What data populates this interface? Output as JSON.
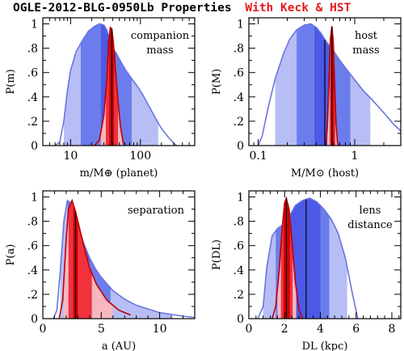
{
  "header": {
    "title_main": "OGLE-2012-BLG-0950Lb Properties",
    "title_highlight": "With Keck & HST",
    "highlight_color": "#e41a1c"
  },
  "colors": {
    "wide_light": "#b7bef5",
    "wide_mid": "#6b7cec",
    "wide_core": "#4b59e6",
    "wide_line": "#6b74e0",
    "narrow_light": "#f7b7c0",
    "narrow_mid": "#f2313c",
    "narrow_core": "#d50000",
    "narrow_line": "#c00000",
    "median_line": "#000000"
  },
  "chart_data": [
    {
      "id": "companion-mass",
      "type": "area",
      "annotation": [
        "companion",
        "mass"
      ],
      "xlabel": "m/M⊕ (planet)",
      "ylabel": "P(m)",
      "xscale": "log",
      "xlim": [
        4,
        600
      ],
      "ylim": [
        0,
        1.05
      ],
      "xticks": [
        10,
        100
      ],
      "xtick_labels": [
        "10",
        "100"
      ],
      "yticks": [
        0,
        0.2,
        0.4,
        0.6,
        0.8,
        1
      ],
      "ytick_labels": [
        "0",
        ".2",
        ".4",
        ".6",
        ".8",
        "1"
      ],
      "series": [
        {
          "role": "wide",
          "x": [
            6,
            7,
            8,
            9,
            10,
            12,
            15,
            18,
            22,
            26,
            30,
            33,
            36,
            40,
            45,
            50,
            60,
            75,
            90,
            110,
            140,
            170,
            200,
            250,
            300,
            330
          ],
          "y": [
            0,
            0.03,
            0.2,
            0.45,
            0.62,
            0.77,
            0.87,
            0.94,
            0.98,
            1.0,
            0.99,
            0.95,
            0.88,
            0.8,
            0.76,
            0.71,
            0.63,
            0.55,
            0.49,
            0.41,
            0.3,
            0.21,
            0.14,
            0.07,
            0.02,
            0
          ],
          "bands": [
            [
              8,
              14,
              1
            ],
            [
              14,
              27,
              2
            ],
            [
              27,
              45,
              3
            ],
            [
              45,
              75,
              2
            ],
            [
              75,
              180,
              1
            ]
          ],
          "median": 36
        },
        {
          "role": "narrow",
          "x": [
            22,
            26,
            30,
            33,
            35,
            37,
            39,
            41,
            44,
            48,
            52,
            56,
            60
          ],
          "y": [
            0,
            0.05,
            0.25,
            0.55,
            0.85,
            0.97,
            0.96,
            0.85,
            0.62,
            0.35,
            0.15,
            0.04,
            0
          ],
          "bands": [
            [
              27,
              32,
              1
            ],
            [
              32,
              36,
              2
            ],
            [
              36,
              42,
              3
            ],
            [
              42,
              48,
              2
            ],
            [
              48,
              55,
              1
            ]
          ],
          "median": 39
        }
      ]
    },
    {
      "id": "host-mass",
      "type": "area",
      "annotation": [
        "host",
        "mass"
      ],
      "xlabel": "M/M⊙ (host)",
      "ylabel": "P(M)",
      "xscale": "log",
      "xlim": [
        0.08,
        3
      ],
      "ylim": [
        0,
        1.05
      ],
      "xticks": [
        0.1,
        1
      ],
      "xtick_labels": [
        "0.1",
        "1"
      ],
      "yticks": [
        0,
        0.2,
        0.4,
        0.6,
        0.8,
        1
      ],
      "ytick_labels": [
        "0",
        ".2",
        ".4",
        ".6",
        ".8",
        "1"
      ],
      "series": [
        {
          "role": "wide",
          "x": [
            0.1,
            0.11,
            0.13,
            0.15,
            0.18,
            0.21,
            0.25,
            0.3,
            0.35,
            0.4,
            0.45,
            0.5,
            0.6,
            0.7,
            0.8,
            1,
            1.2,
            1.5,
            2,
            2.5,
            3
          ],
          "y": [
            0,
            0.08,
            0.35,
            0.55,
            0.74,
            0.87,
            0.95,
            0.99,
            1.0,
            0.97,
            0.92,
            0.86,
            0.78,
            0.7,
            0.64,
            0.54,
            0.46,
            0.38,
            0.27,
            0.18,
            0.12
          ],
          "bands": [
            [
              0.15,
              0.25,
              1
            ],
            [
              0.25,
              0.38,
              2
            ],
            [
              0.38,
              0.6,
              3
            ],
            [
              0.6,
              0.9,
              2
            ],
            [
              0.9,
              1.45,
              1
            ]
          ],
          "median": 0.49
        },
        {
          "role": "narrow",
          "x": [
            0.5,
            0.52,
            0.54,
            0.56,
            0.58,
            0.6,
            0.62,
            0.64,
            0.66,
            0.68
          ],
          "y": [
            0,
            0.15,
            0.5,
            0.88,
            0.98,
            0.85,
            0.5,
            0.18,
            0.04,
            0
          ],
          "bands": [
            [
              0.52,
              0.55,
              1
            ],
            [
              0.55,
              0.57,
              2
            ],
            [
              0.57,
              0.61,
              3
            ],
            [
              0.61,
              0.63,
              2
            ],
            [
              0.63,
              0.65,
              1
            ]
          ],
          "median": 0.58
        }
      ]
    },
    {
      "id": "separation",
      "type": "area",
      "annotation": [
        "separation"
      ],
      "xlabel": "a (AU)",
      "ylabel": "P(a)",
      "xscale": "linear",
      "xlim": [
        0,
        13
      ],
      "ylim": [
        0,
        1.05
      ],
      "xticks": [
        0,
        5,
        10
      ],
      "xtick_labels": [
        "0",
        "5",
        "10"
      ],
      "yticks": [
        0,
        0.2,
        0.4,
        0.6,
        0.8,
        1
      ],
      "ytick_labels": [
        "0",
        ".2",
        ".4",
        ".6",
        ".8",
        "1"
      ],
      "series": [
        {
          "role": "wide",
          "x": [
            0.9,
            1.2,
            1.5,
            1.8,
            2.1,
            2.4,
            2.7,
            3.0,
            3.5,
            4.0,
            4.5,
            5.0,
            6.0,
            7.0,
            8.0,
            9.0,
            10.0,
            11.0,
            12.0,
            13.0
          ],
          "y": [
            0,
            0.07,
            0.4,
            0.8,
            0.97,
            0.95,
            0.86,
            0.76,
            0.62,
            0.5,
            0.41,
            0.34,
            0.23,
            0.16,
            0.11,
            0.08,
            0.05,
            0.035,
            0.02,
            0.01
          ],
          "bands": [
            [
              1.5,
              2.1,
              1
            ],
            [
              2.1,
              2.8,
              2
            ],
            [
              2.8,
              4.0,
              3
            ],
            [
              4.0,
              5.8,
              2
            ],
            [
              5.8,
              11.0,
              1
            ]
          ],
          "median": 2.9
        },
        {
          "role": "narrow",
          "x": [
            1.4,
            1.7,
            2.0,
            2.2,
            2.5,
            2.8,
            3.2,
            3.6,
            4.0,
            4.6,
            5.5,
            6.5,
            7.5
          ],
          "y": [
            0,
            0.15,
            0.65,
            0.9,
            0.97,
            0.88,
            0.72,
            0.56,
            0.42,
            0.28,
            0.15,
            0.07,
            0.03
          ],
          "bands": [
            [
              1.8,
              2.2,
              1
            ],
            [
              2.2,
              2.6,
              2
            ],
            [
              2.6,
              3.0,
              3
            ],
            [
              3.0,
              4.2,
              2
            ],
            [
              4.2,
              6.0,
              1
            ]
          ],
          "median": 2.8
        }
      ]
    },
    {
      "id": "lens-distance",
      "type": "area",
      "annotation": [
        "lens",
        "distance"
      ],
      "xlabel": "DL (kpc)",
      "ylabel": "P(DL)",
      "xscale": "linear",
      "xlim": [
        0,
        8.5
      ],
      "ylim": [
        0,
        1.05
      ],
      "xticks": [
        0,
        2,
        4,
        6,
        8
      ],
      "xtick_labels": [
        "0",
        "2",
        "4",
        "6",
        "8"
      ],
      "yticks": [
        0,
        0.2,
        0.4,
        0.6,
        0.8,
        1
      ],
      "ytick_labels": [
        "0",
        ".2",
        ".4",
        ".6",
        ".8",
        "1"
      ],
      "series": [
        {
          "role": "wide",
          "x": [
            0.5,
            0.8,
            1.0,
            1.3,
            1.6,
            2.0,
            2.3,
            2.6,
            3.0,
            3.4,
            3.8,
            4.2,
            4.6,
            5.0,
            5.4,
            5.8,
            6.1
          ],
          "y": [
            0,
            0.1,
            0.42,
            0.68,
            0.74,
            0.78,
            0.85,
            0.93,
            0.97,
            0.99,
            0.96,
            0.9,
            0.82,
            0.7,
            0.5,
            0.2,
            0
          ],
          "bands": [
            [
              0.8,
              1.5,
              1
            ],
            [
              1.5,
              2.3,
              2
            ],
            [
              2.3,
              4.0,
              3
            ],
            [
              4.0,
              4.5,
              2
            ],
            [
              4.5,
              5.5,
              1
            ]
          ],
          "median": 3.2
        },
        {
          "role": "narrow",
          "x": [
            1.3,
            1.5,
            1.7,
            1.85,
            2.0,
            2.1,
            2.25,
            2.4,
            2.6,
            2.8,
            3.0
          ],
          "y": [
            0,
            0.1,
            0.4,
            0.72,
            0.95,
            0.99,
            0.9,
            0.65,
            0.3,
            0.08,
            0
          ],
          "bands": [
            [
              1.6,
              1.8,
              1
            ],
            [
              1.8,
              1.95,
              2
            ],
            [
              1.95,
              2.3,
              3
            ],
            [
              2.3,
              2.45,
              2
            ],
            [
              2.45,
              2.65,
              1
            ]
          ],
          "median": 2.1
        }
      ]
    }
  ]
}
